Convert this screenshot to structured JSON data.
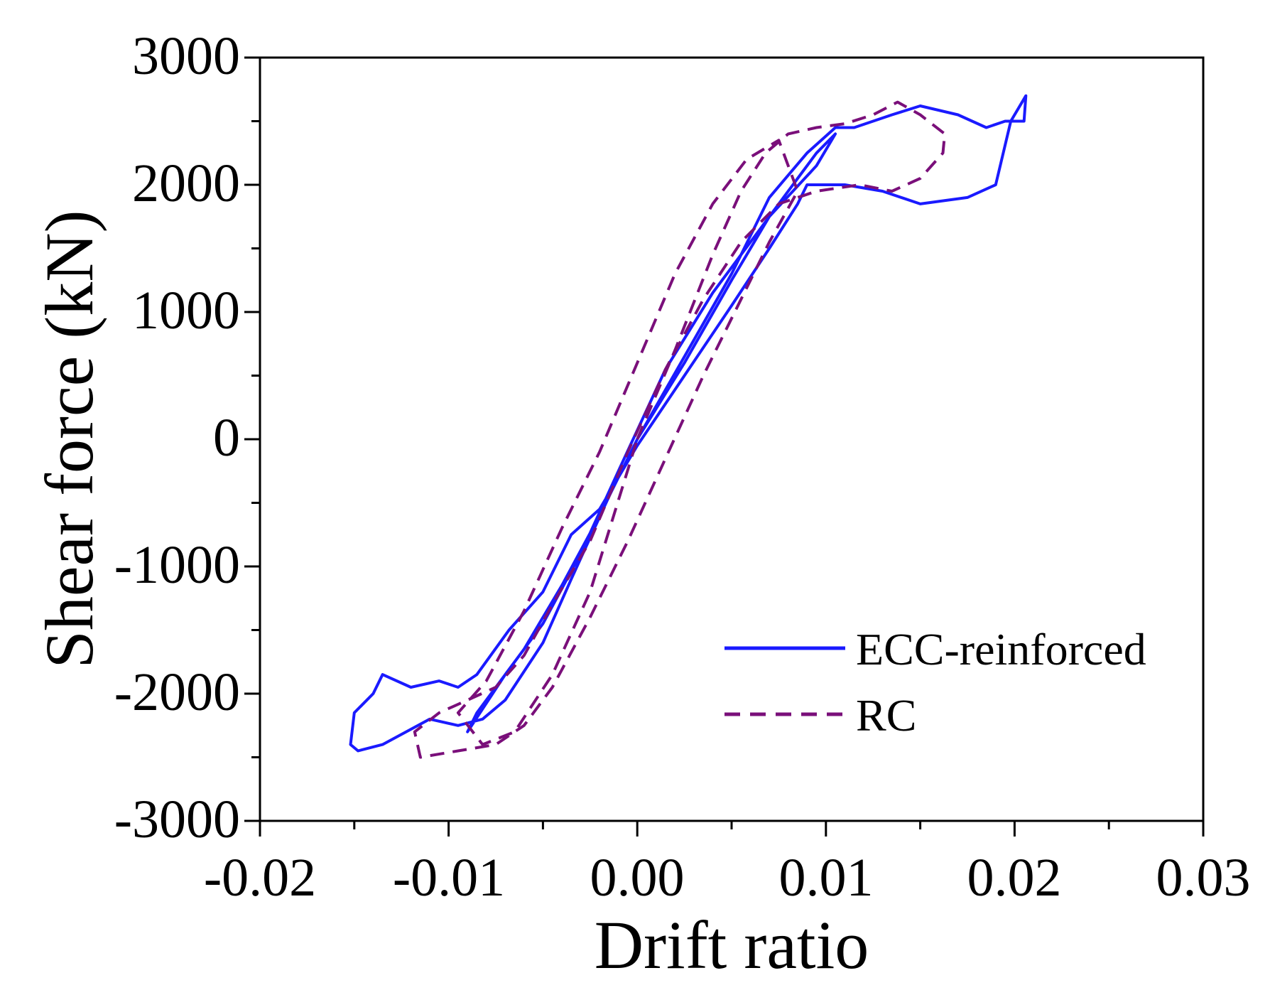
{
  "chart_data": {
    "type": "line",
    "title": "",
    "xlabel": "Drift ratio",
    "ylabel": "Shear force (kN)",
    "xlim": [
      -0.02,
      0.03
    ],
    "ylim": [
      -3000,
      3000
    ],
    "x_ticks": [
      -0.02,
      -0.01,
      0.0,
      0.01,
      0.02,
      0.03
    ],
    "x_tick_labels": [
      "-0.02",
      "-0.01",
      "0.00",
      "0.01",
      "0.02",
      "0.03"
    ],
    "y_ticks": [
      -3000,
      -2000,
      -1000,
      0,
      1000,
      2000,
      3000
    ],
    "y_tick_labels": [
      "-3000",
      "-2000",
      "-1000",
      "0",
      "1000",
      "2000",
      "3000"
    ],
    "grid": false,
    "legend_position": "bottom-right",
    "series": [
      {
        "name": "ECC-reinforced",
        "color": "#1a1aff",
        "style": "solid",
        "x": [
          0.0,
          0.0025,
          0.005,
          0.007,
          0.0085,
          0.0095,
          0.0105,
          0.0095,
          0.007,
          0.004,
          0.0015,
          -0.001,
          -0.003,
          -0.005,
          -0.007,
          -0.009,
          -0.0085,
          -0.006,
          -0.004,
          -0.002,
          0.0,
          0.0025,
          0.005,
          0.007,
          0.009,
          0.0105,
          0.0115,
          0.0135,
          0.015,
          0.017,
          0.0185,
          0.0195,
          0.0205,
          0.0206,
          0.0198,
          0.019,
          0.0175,
          0.015,
          0.013,
          0.011,
          0.009,
          0.0085,
          0.007,
          0.005,
          0.0025,
          0.0,
          -0.002,
          -0.0035,
          -0.005,
          -0.0068,
          -0.0085,
          -0.0095,
          -0.0105,
          -0.012,
          -0.0135,
          -0.014,
          -0.015,
          -0.0152,
          -0.0148,
          -0.0135,
          -0.011,
          -0.0095,
          -0.0082,
          -0.007,
          -0.005,
          -0.0035,
          -0.0015,
          0.0
        ],
        "y": [
          0,
          600,
          1250,
          1750,
          2050,
          2250,
          2400,
          2150,
          1750,
          1150,
          550,
          -250,
          -900,
          -1450,
          -1850,
          -2300,
          -2150,
          -1650,
          -1150,
          -600,
          0,
          650,
          1300,
          1900,
          2250,
          2450,
          2450,
          2550,
          2620,
          2550,
          2450,
          2500,
          2500,
          2700,
          2500,
          2000,
          1900,
          1850,
          1950,
          2000,
          2000,
          1850,
          1500,
          1050,
          500,
          -50,
          -550,
          -750,
          -1200,
          -1500,
          -1850,
          -1950,
          -1900,
          -1950,
          -1850,
          -2000,
          -2150,
          -2400,
          -2450,
          -2400,
          -2200,
          -2250,
          -2200,
          -2050,
          -1600,
          -1100,
          -450,
          0
        ]
      },
      {
        "name": "RC",
        "color": "#7a0f7a",
        "style": "dashed",
        "x": [
          0.0,
          0.002,
          0.004,
          0.0055,
          0.0068,
          0.008,
          0.0095,
          0.011,
          0.0125,
          0.0138,
          0.015,
          0.0163,
          0.0162,
          0.015,
          0.0135,
          0.0118,
          0.0095,
          0.0075,
          0.0055,
          0.0035,
          0.0015,
          -0.0005,
          -0.0025,
          -0.0045,
          -0.006,
          -0.0075,
          -0.009,
          -0.0105,
          -0.0118,
          -0.0115,
          -0.0095,
          -0.0075,
          -0.006,
          -0.0045,
          -0.0025,
          -0.0005,
          0.0015,
          0.0035,
          0.0055,
          0.007,
          0.0085,
          0.0075,
          0.0058,
          0.004,
          0.002,
          0.0,
          -0.002,
          -0.004,
          -0.006,
          -0.008,
          -0.0095,
          -0.0082,
          -0.0065,
          -0.0045,
          -0.0025,
          0.0
        ],
        "y": [
          0,
          700,
          1450,
          1950,
          2250,
          2400,
          2450,
          2480,
          2550,
          2650,
          2550,
          2400,
          2250,
          2050,
          1950,
          2000,
          1950,
          1850,
          1550,
          1100,
          550,
          -100,
          -800,
          -1300,
          -1700,
          -1950,
          -2050,
          -2150,
          -2300,
          -2500,
          -2450,
          -2400,
          -2250,
          -1950,
          -1400,
          -800,
          -150,
          500,
          1100,
          1550,
          1950,
          2350,
          2200,
          1850,
          1300,
          600,
          -100,
          -700,
          -1350,
          -1900,
          -2150,
          -2400,
          -2300,
          -1850,
          -1200,
          0
        ]
      }
    ]
  }
}
